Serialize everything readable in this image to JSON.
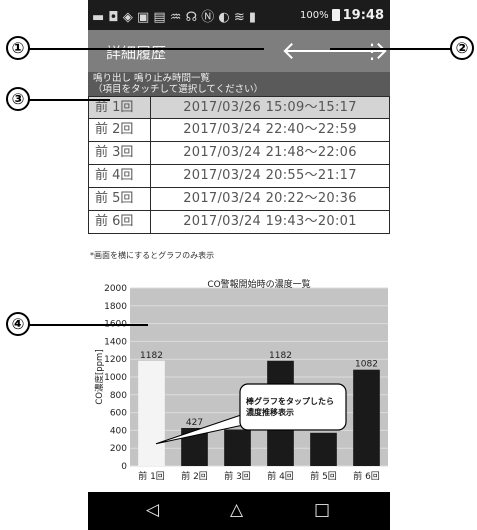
{
  "status_bar": {
    "left_icons": "▬ ◘ ◈ ▣ ▤ ♒ ☊ Ⓝ ◐ ≋ ▮",
    "battery_pct": "100%",
    "clock": "19:48"
  },
  "app_bar": {
    "title": "詳細履歴",
    "back_icon": "🡐",
    "forward_icon": "🡒",
    "menu_icon": "⋮"
  },
  "list_header": {
    "line1": "鳴り出し 鳴り止み時間一覧",
    "line2": "（項目をタッチして選択してください）"
  },
  "history": [
    {
      "count": "前 1回",
      "time": "2017/03/26 15:09～15:17",
      "selected": true
    },
    {
      "count": "前 2回",
      "time": "2017/03/24 22:40～22:59",
      "selected": false
    },
    {
      "count": "前 3回",
      "time": "2017/03/24 21:48～22:06",
      "selected": false
    },
    {
      "count": "前 4回",
      "time": "2017/03/24 20:55～21:17",
      "selected": false
    },
    {
      "count": "前 5回",
      "time": "2017/03/24 20:22～20:36",
      "selected": false
    },
    {
      "count": "前 6回",
      "time": "2017/03/24 19:43～20:01",
      "selected": false
    }
  ],
  "rotate_hint": "*画面を横にするとグラフのみ表示",
  "chart_data": {
    "type": "bar",
    "title": "CO警報開始時の濃度一覧",
    "ylabel": "CO濃度[ppm]",
    "xlabel": "",
    "ylim": [
      0,
      2000
    ],
    "yticks": [
      0,
      200,
      400,
      600,
      800,
      1000,
      1200,
      1400,
      1600,
      1800,
      2000
    ],
    "categories": [
      "前 1回",
      "前 2回",
      "前 3回",
      "前 4回",
      "前 5回",
      "前 6回"
    ],
    "values": [
      1182,
      427,
      410,
      1182,
      373,
      1082
    ],
    "data_labels": [
      "1182",
      "427",
      "410",
      "1182",
      "373",
      "1082"
    ],
    "highlight_index": 0,
    "colors": {
      "plot_bg": "#c4c4c4",
      "bar": "#1a1a1a",
      "bar_selected": "#f4f4f4",
      "grid": "#dcdcdc"
    },
    "grid": true,
    "tooltip": {
      "line1": "棒グラフをタップしたら",
      "line2": "濃度推移表示"
    }
  },
  "nav_bar": {
    "back_icon": "◁",
    "home_icon": "△",
    "recent_icon": "□"
  },
  "callouts": {
    "c1": "①",
    "c2": "②",
    "c3": "③",
    "c4": "④"
  }
}
